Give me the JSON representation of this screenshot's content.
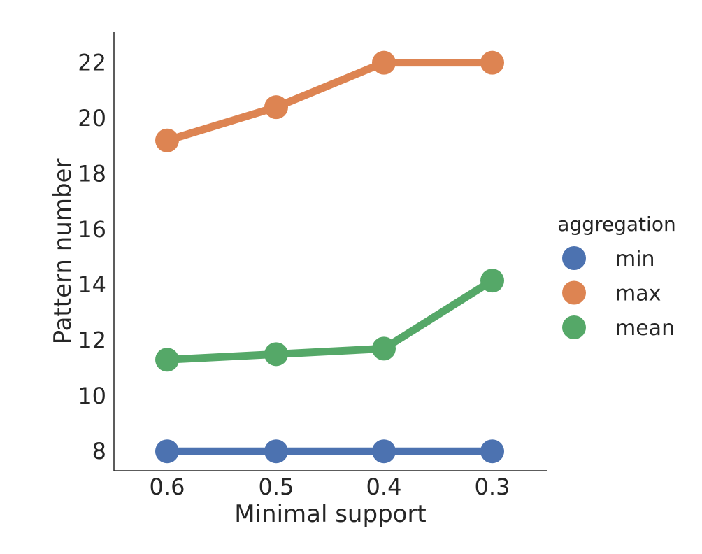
{
  "chart_data": {
    "type": "line",
    "categories": [
      "0.6",
      "0.5",
      "0.4",
      "0.3"
    ],
    "xlabel": "Minimal support",
    "ylabel": "Pattern number",
    "yticks": [
      8,
      10,
      12,
      14,
      16,
      18,
      20,
      22
    ],
    "ylim": [
      7.3,
      23.1
    ],
    "grid": false,
    "legend": {
      "title": "aggregation",
      "placement": "right"
    },
    "series": [
      {
        "name": "min",
        "color": "#4c72b0",
        "values": [
          8,
          8,
          8,
          8
        ]
      },
      {
        "name": "max",
        "color": "#dd8452",
        "values": [
          19.2,
          20.4,
          22,
          22
        ]
      },
      {
        "name": "mean",
        "color": "#55a868",
        "values": [
          11.3,
          11.5,
          11.7,
          14.15
        ]
      }
    ]
  }
}
